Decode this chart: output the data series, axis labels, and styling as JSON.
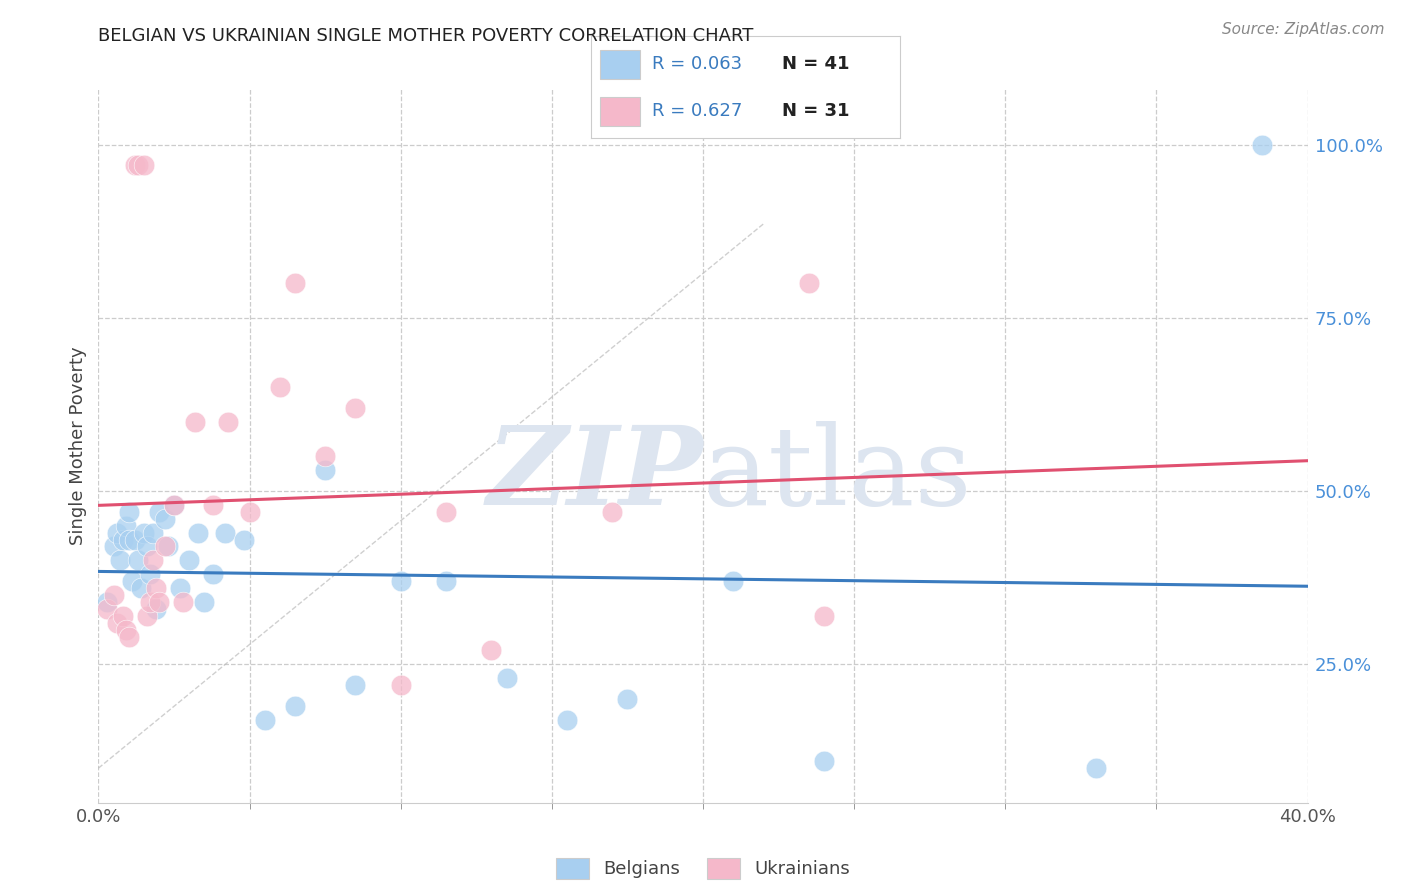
{
  "title": "BELGIAN VS UKRAINIAN SINGLE MOTHER POVERTY CORRELATION CHART",
  "source": "Source: ZipAtlas.com",
  "ylabel": "Single Mother Poverty",
  "xmin": 0.0,
  "xmax": 0.4,
  "ymin": 0.05,
  "ymax": 1.08,
  "belgian_R": 0.063,
  "belgian_N": 41,
  "ukrainian_R": 0.627,
  "ukrainian_N": 31,
  "belgian_color": "#a8cff0",
  "ukrainian_color": "#f5b8ca",
  "belgian_line_color": "#3a7bbf",
  "ukrainian_line_color": "#e05070",
  "legend_text_color": "#3a7bbf",
  "legend_label_color": "#222222",
  "background_color": "#ffffff",
  "watermark_color": "#dde5f0",
  "grid_color": "#cccccc",
  "ytick_color": "#4a90d9",
  "xtick_color": "#555555",
  "ytick_vals": [
    0.25,
    0.5,
    0.75,
    1.0
  ],
  "ytick_labels": [
    "25.0%",
    "50.0%",
    "75.0%",
    "100.0%"
  ],
  "belgians_x": [
    0.003,
    0.005,
    0.006,
    0.007,
    0.008,
    0.009,
    0.01,
    0.01,
    0.011,
    0.012,
    0.013,
    0.014,
    0.015,
    0.016,
    0.017,
    0.018,
    0.019,
    0.02,
    0.022,
    0.023,
    0.025,
    0.027,
    0.03,
    0.033,
    0.035,
    0.038,
    0.042,
    0.048,
    0.055,
    0.065,
    0.075,
    0.085,
    0.1,
    0.115,
    0.135,
    0.155,
    0.175,
    0.21,
    0.24,
    0.33,
    0.385
  ],
  "belgians_y": [
    0.34,
    0.42,
    0.44,
    0.4,
    0.43,
    0.45,
    0.43,
    0.47,
    0.37,
    0.43,
    0.4,
    0.36,
    0.44,
    0.42,
    0.38,
    0.44,
    0.33,
    0.47,
    0.46,
    0.42,
    0.48,
    0.36,
    0.4,
    0.44,
    0.34,
    0.38,
    0.44,
    0.43,
    0.17,
    0.19,
    0.53,
    0.22,
    0.37,
    0.37,
    0.23,
    0.17,
    0.2,
    0.37,
    0.11,
    0.1,
    1.0
  ],
  "ukrainians_x": [
    0.003,
    0.005,
    0.006,
    0.008,
    0.009,
    0.01,
    0.012,
    0.013,
    0.015,
    0.016,
    0.017,
    0.018,
    0.019,
    0.02,
    0.022,
    0.025,
    0.028,
    0.032,
    0.038,
    0.043,
    0.05,
    0.06,
    0.065,
    0.075,
    0.085,
    0.1,
    0.115,
    0.13,
    0.17,
    0.235,
    0.24
  ],
  "ukrainians_y": [
    0.33,
    0.35,
    0.31,
    0.32,
    0.3,
    0.29,
    0.97,
    0.97,
    0.97,
    0.32,
    0.34,
    0.4,
    0.36,
    0.34,
    0.42,
    0.48,
    0.34,
    0.6,
    0.48,
    0.6,
    0.47,
    0.65,
    0.8,
    0.55,
    0.62,
    0.22,
    0.47,
    0.27,
    0.47,
    0.8,
    0.32
  ]
}
